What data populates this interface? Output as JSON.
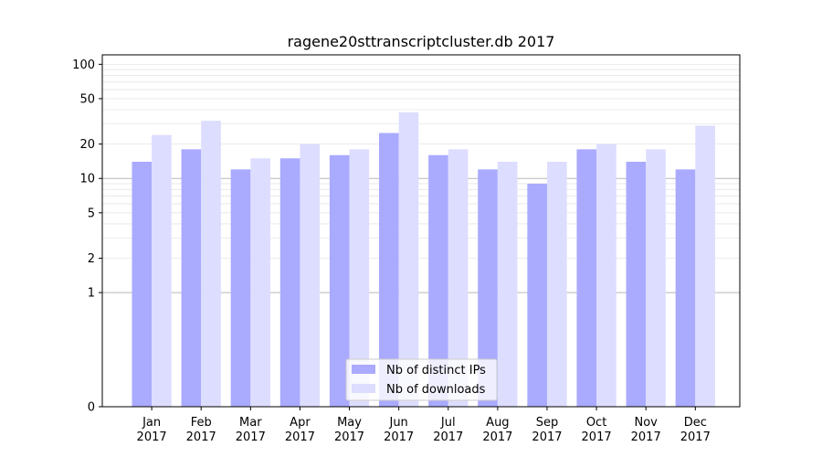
{
  "chart_data": {
    "type": "bar",
    "title": "ragene20sttranscriptcluster.db 2017",
    "xlabel": "",
    "ylabel": "",
    "y_scale": "symlog",
    "ylim": [
      0,
      120
    ],
    "grid": "horizontal",
    "legend_position": "bottom-center",
    "categories": [
      "Jan\n2017",
      "Feb\n2017",
      "Mar\n2017",
      "Apr\n2017",
      "May\n2017",
      "Jun\n2017",
      "Jul\n2017",
      "Aug\n2017",
      "Sep\n2017",
      "Oct\n2017",
      "Nov\n2017",
      "Dec\n2017"
    ],
    "y_ticks": [
      0,
      1,
      2,
      5,
      10,
      20,
      50,
      100
    ],
    "series": [
      {
        "name": "Nb of distinct IPs",
        "color": "#aaaaff",
        "values": [
          14,
          18,
          12,
          15,
          16,
          25,
          16,
          12,
          9,
          18,
          14,
          12
        ]
      },
      {
        "name": "Nb of downloads",
        "color": "#ddddff",
        "values": [
          24,
          32,
          15,
          20,
          18,
          38,
          18,
          14,
          14,
          20,
          18,
          29
        ]
      }
    ]
  }
}
